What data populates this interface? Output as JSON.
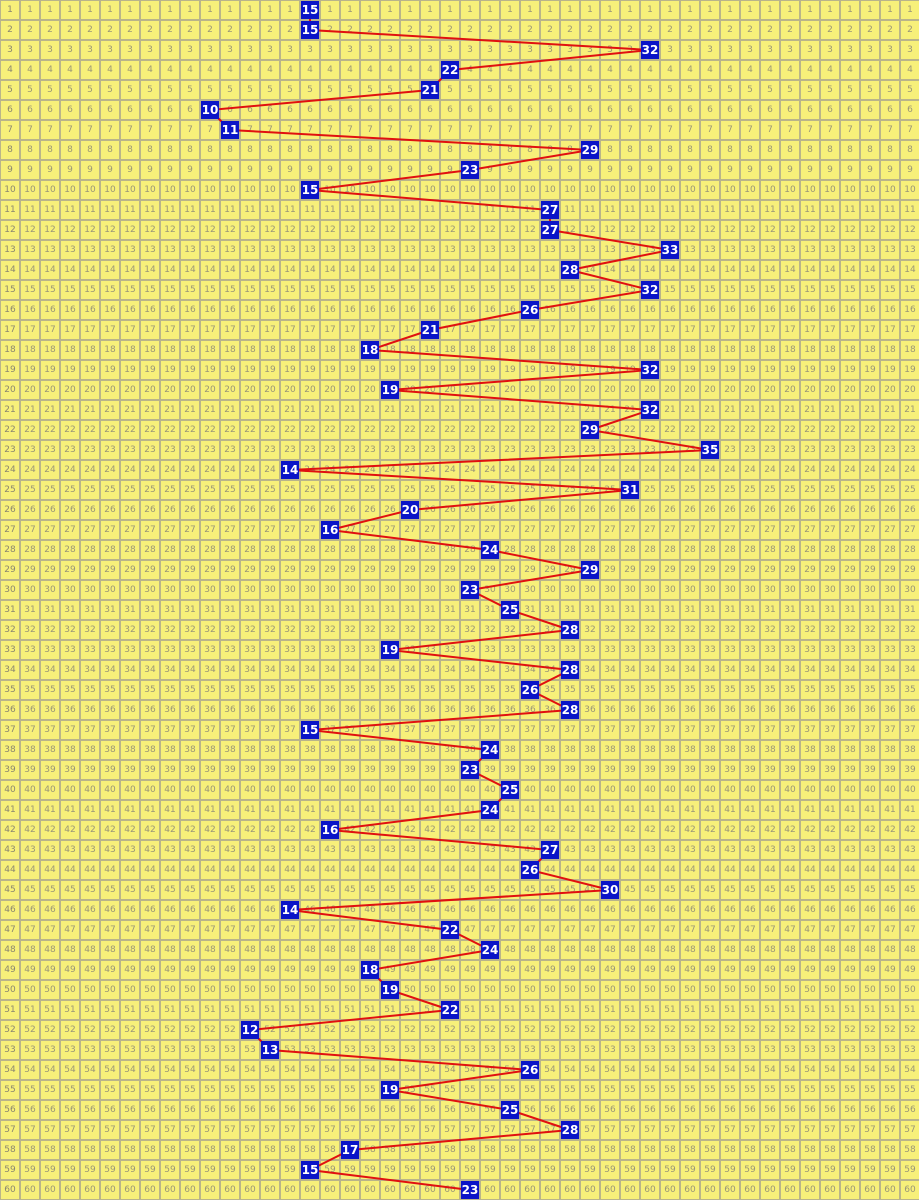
{
  "chart_data": {
    "type": "grid",
    "categories": [
      "1",
      "2",
      "3",
      "4",
      "5",
      "6",
      "7",
      "8",
      "9",
      "10",
      "11",
      "12",
      "13",
      "14",
      "15",
      "16",
      "17",
      "18",
      "19",
      "20",
      "21",
      "22",
      "23",
      "24",
      "25",
      "26",
      "27",
      "28",
      "29",
      "30",
      "31",
      "32",
      "33",
      "34",
      "35",
      "36",
      "37",
      "38",
      "39",
      "40",
      "41",
      "42",
      "43",
      "44",
      "45",
      "46",
      "47",
      "48",
      "49",
      "50",
      "51",
      "52",
      "53",
      "54",
      "55",
      "56",
      "57",
      "58",
      "59",
      "60"
    ],
    "values": [
      15,
      15,
      32,
      22,
      21,
      10,
      11,
      29,
      23,
      15,
      27,
      27,
      33,
      28,
      32,
      26,
      21,
      18,
      32,
      19,
      32,
      29,
      35,
      14,
      31,
      20,
      16,
      24,
      29,
      23,
      25,
      28,
      19,
      28,
      26,
      28,
      15,
      24,
      23,
      25,
      24,
      16,
      27,
      26,
      30,
      14,
      22,
      24,
      18,
      19,
      22,
      12,
      13,
      26,
      19,
      25,
      28,
      17,
      15,
      23
    ],
    "xlim": [
      1,
      45
    ]
  }
}
